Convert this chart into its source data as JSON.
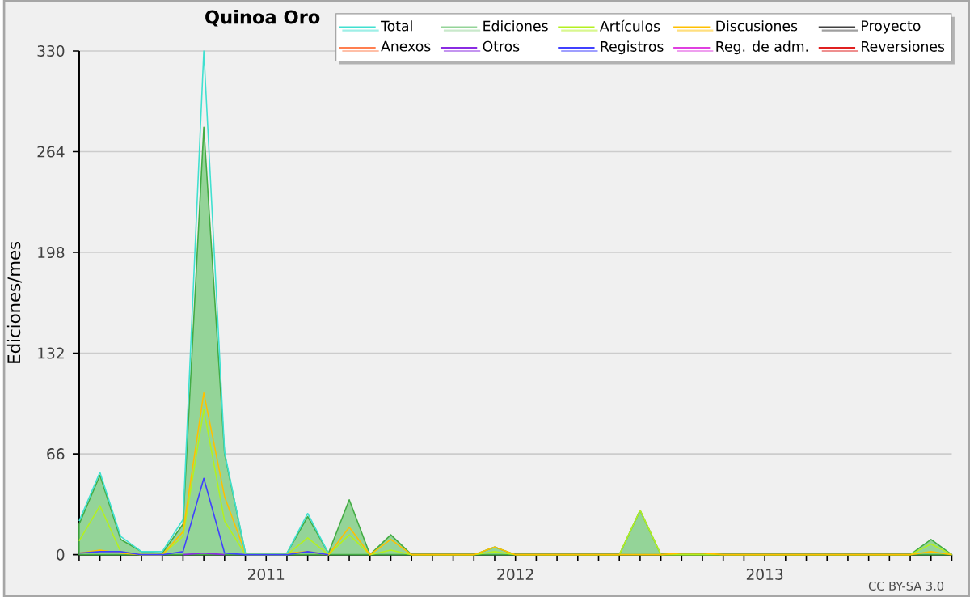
{
  "chart_data": {
    "type": "line",
    "title": "Quinoa Oro",
    "ylabel": "Ediciones/mes",
    "x": [
      "2010-04",
      "2010-05",
      "2010-06",
      "2010-07",
      "2010-08",
      "2010-09",
      "2010-10",
      "2010-11",
      "2010-12",
      "2011-01",
      "2011-02",
      "2011-03",
      "2011-04",
      "2011-05",
      "2011-06",
      "2011-07",
      "2011-08",
      "2011-09",
      "2011-10",
      "2011-11",
      "2011-12",
      "2012-01",
      "2012-02",
      "2012-03",
      "2012-04",
      "2012-05",
      "2012-06",
      "2012-07",
      "2012-08",
      "2012-09",
      "2012-10",
      "2012-11",
      "2012-12",
      "2013-01",
      "2013-02",
      "2013-03",
      "2013-04",
      "2013-05",
      "2013-06",
      "2013-07",
      "2013-08",
      "2013-09",
      "2013-10"
    ],
    "series": [
      {
        "name": "Total",
        "color": "#40e0d0",
        "values": [
          22,
          54,
          12,
          2,
          2,
          23,
          330,
          67,
          1,
          1,
          1,
          27,
          1,
          null,
          null,
          null,
          null,
          null,
          null,
          null,
          null,
          null,
          null,
          null,
          null,
          null,
          null,
          null,
          null,
          null,
          null,
          null,
          null,
          null,
          null,
          null,
          null,
          null,
          null,
          null,
          null,
          null,
          null
        ]
      },
      {
        "name": "Ediciones",
        "type": "area",
        "color": "#94d498",
        "values": [
          20,
          52,
          10,
          2,
          1,
          20,
          280,
          66,
          1,
          1,
          1,
          25,
          1,
          36,
          0,
          13,
          0,
          0,
          0,
          0,
          5,
          0,
          0,
          0,
          0,
          0,
          0,
          29,
          0,
          1,
          1,
          0,
          0,
          0,
          0,
          0,
          0,
          0,
          0,
          0,
          0,
          10,
          0
        ]
      },
      {
        "name": "Artículos",
        "color": "#b4f020",
        "values": [
          9,
          32,
          2,
          0,
          0,
          12,
          95,
          22,
          0,
          0,
          0,
          11,
          0,
          13,
          0,
          3,
          0,
          null,
          null,
          0,
          2,
          0,
          null,
          null,
          null,
          null,
          0,
          29,
          0,
          0,
          0,
          0,
          null,
          null,
          null,
          null,
          null,
          null,
          null,
          null,
          0,
          7,
          0
        ]
      },
      {
        "name": "Discusiones",
        "color": "#ffc000",
        "values": [
          1,
          3,
          1,
          0,
          0,
          15,
          106,
          38,
          1,
          null,
          1,
          2,
          0,
          18,
          0,
          10,
          0,
          null,
          null,
          0,
          5,
          0,
          null,
          null,
          null,
          null,
          null,
          null,
          0,
          1,
          1,
          0,
          null,
          null,
          null,
          null,
          null,
          null,
          null,
          null,
          0,
          2,
          0
        ]
      },
      {
        "name": "Proyecto",
        "color": "#404040",
        "values": [
          null,
          null,
          null,
          null,
          null,
          null,
          null,
          null,
          null,
          null,
          null,
          null,
          null,
          null,
          null,
          null,
          null,
          null,
          null,
          null,
          null,
          null,
          null,
          null,
          null,
          null,
          null,
          null,
          null,
          null,
          null,
          null,
          null,
          null,
          null,
          null,
          null,
          null,
          null,
          null,
          null,
          null,
          null
        ]
      },
      {
        "name": "Anexos",
        "color": "#ff7f50",
        "values": [
          null,
          null,
          null,
          null,
          null,
          null,
          null,
          null,
          null,
          null,
          null,
          null,
          null,
          null,
          null,
          null,
          null,
          null,
          null,
          null,
          null,
          null,
          null,
          null,
          null,
          null,
          null,
          null,
          null,
          null,
          null,
          null,
          null,
          null,
          null,
          null,
          null,
          null,
          null,
          null,
          null,
          null,
          null
        ]
      },
      {
        "name": "Otros",
        "color": "#8a2be2",
        "values": [
          null,
          null,
          null,
          null,
          null,
          0,
          1,
          0,
          null,
          null,
          null,
          null,
          null,
          null,
          null,
          null,
          null,
          null,
          null,
          null,
          null,
          null,
          null,
          null,
          null,
          null,
          null,
          null,
          null,
          null,
          null,
          null,
          null,
          null,
          null,
          null,
          null,
          null,
          null,
          null,
          null,
          null,
          null
        ]
      },
      {
        "name": "Registros",
        "color": "#4040ff",
        "values": [
          1,
          2,
          2,
          0,
          0,
          2,
          50,
          1,
          0,
          null,
          0,
          2,
          0,
          null,
          null,
          null,
          null,
          null,
          null,
          null,
          null,
          null,
          null,
          null,
          null,
          null,
          null,
          null,
          null,
          null,
          null,
          null,
          null,
          null,
          null,
          null,
          null,
          null,
          null,
          null,
          null,
          null,
          null
        ]
      },
      {
        "name": "Reg. de adm.",
        "color": "#e040e0",
        "values": [
          null,
          null,
          null,
          null,
          null,
          null,
          null,
          null,
          null,
          null,
          null,
          null,
          null,
          null,
          null,
          null,
          null,
          null,
          null,
          null,
          null,
          null,
          null,
          null,
          null,
          null,
          null,
          null,
          null,
          null,
          null,
          null,
          null,
          null,
          null,
          null,
          null,
          null,
          null,
          null,
          null,
          null,
          null
        ]
      },
      {
        "name": "Reversiones",
        "color": "#e02020",
        "values": [
          null,
          null,
          null,
          null,
          null,
          null,
          null,
          null,
          null,
          null,
          null,
          null,
          null,
          null,
          null,
          null,
          null,
          null,
          null,
          null,
          null,
          null,
          null,
          null,
          null,
          null,
          null,
          null,
          null,
          null,
          null,
          null,
          null,
          null,
          null,
          null,
          null,
          null,
          null,
          null,
          null,
          null,
          null
        ]
      }
    ],
    "xlim": [
      "2010-04",
      "2013-10"
    ],
    "xticks": [
      {
        "value": "2010-04",
        "label": null
      },
      {
        "value": "2010-05",
        "label": null
      },
      {
        "value": "2010-06",
        "label": null
      },
      {
        "value": "2010-07",
        "label": null
      },
      {
        "value": "2010-08",
        "label": null
      },
      {
        "value": "2010-09",
        "label": null
      },
      {
        "value": "2010-10",
        "label": null
      },
      {
        "value": "2010-11",
        "label": null
      },
      {
        "value": "2010-12",
        "label": null
      },
      {
        "value": "2011-01",
        "label": "2011"
      },
      {
        "value": "2011-02",
        "label": null
      },
      {
        "value": "2011-03",
        "label": null
      },
      {
        "value": "2011-04",
        "label": null
      },
      {
        "value": "2011-05",
        "label": null
      },
      {
        "value": "2011-06",
        "label": null
      },
      {
        "value": "2011-07",
        "label": null
      },
      {
        "value": "2011-08",
        "label": null
      },
      {
        "value": "2011-09",
        "label": null
      },
      {
        "value": "2011-10",
        "label": null
      },
      {
        "value": "2011-11",
        "label": null
      },
      {
        "value": "2011-12",
        "label": null
      },
      {
        "value": "2012-01",
        "label": "2012"
      },
      {
        "value": "2012-02",
        "label": null
      },
      {
        "value": "2012-03",
        "label": null
      },
      {
        "value": "2012-04",
        "label": null
      },
      {
        "value": "2012-05",
        "label": null
      },
      {
        "value": "2012-06",
        "label": null
      },
      {
        "value": "2012-07",
        "label": null
      },
      {
        "value": "2012-08",
        "label": null
      },
      {
        "value": "2012-09",
        "label": null
      },
      {
        "value": "2012-10",
        "label": null
      },
      {
        "value": "2012-11",
        "label": null
      },
      {
        "value": "2012-12",
        "label": null
      },
      {
        "value": "2013-01",
        "label": "2013"
      },
      {
        "value": "2013-02",
        "label": null
      },
      {
        "value": "2013-03",
        "label": null
      },
      {
        "value": "2013-04",
        "label": null
      },
      {
        "value": "2013-05",
        "label": null
      },
      {
        "value": "2013-06",
        "label": null
      },
      {
        "value": "2013-07",
        "label": null
      },
      {
        "value": "2013-08",
        "label": null
      },
      {
        "value": "2013-09",
        "label": null
      },
      {
        "value": "2013-10",
        "label": null
      }
    ],
    "ylim": [
      0,
      330
    ],
    "yticks": [
      0,
      66,
      132,
      198,
      264,
      330
    ],
    "grid": "y",
    "legend": "top right",
    "marker": "none",
    "line_style": "solid",
    "annotations": [
      "CC BY-SA 3.0"
    ]
  }
}
